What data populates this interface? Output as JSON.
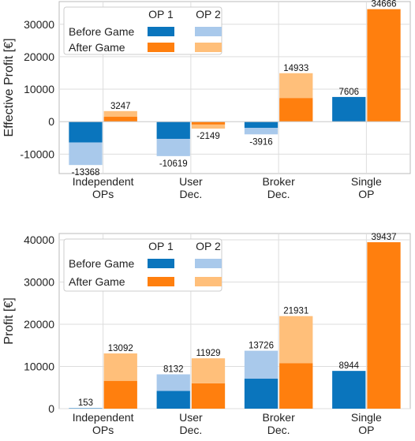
{
  "colors": {
    "before_op1": "#0a75bd",
    "before_op2": "#a9c9eb",
    "after_op1": "#ff7f0e",
    "after_op2": "#ffbf7a",
    "grid": "#dddddd",
    "axis": "#bbbbbb"
  },
  "chart_data": [
    {
      "type": "bar",
      "stacked": true,
      "grouped": true,
      "title": "",
      "xlabel": "",
      "ylabel": "Effective Profit [€]",
      "ylim": [
        -16000,
        37000
      ],
      "yticks": [
        -10000,
        0,
        10000,
        20000,
        30000
      ],
      "ytick_labels": [
        "-10000",
        "0",
        "10000",
        "20000",
        "30000"
      ],
      "grid": true,
      "categories": [
        [
          "Independent",
          "OPs"
        ],
        [
          "User",
          "Dec."
        ],
        [
          "Broker",
          "Dec."
        ],
        [
          "Single",
          "OP"
        ]
      ],
      "legend": {
        "placement": "top-left",
        "columns": [
          "OP 1",
          "OP 2"
        ],
        "rows": [
          "Before Game",
          "After Game"
        ]
      },
      "groups": [
        {
          "name": "Before Game",
          "op1": [
            -6400,
            -5300,
            -1900,
            7606
          ],
          "op2": [
            -6968,
            -5319,
            -2016,
            0
          ],
          "totals": [
            -13368,
            -10619,
            -3916,
            7606
          ]
        },
        {
          "name": "After Game",
          "op1": [
            1500,
            -900,
            7300,
            34666
          ],
          "op2": [
            1747,
            -1249,
            7633,
            0
          ],
          "totals": [
            3247,
            -2149,
            14933,
            34666
          ]
        }
      ],
      "total_labels": {
        "before": [
          "-13368",
          "-10619",
          "-3916",
          "7606"
        ],
        "after": [
          "3247",
          "-2149",
          "14933",
          "34666"
        ]
      }
    },
    {
      "type": "bar",
      "stacked": true,
      "grouped": true,
      "title": "",
      "xlabel": "",
      "ylabel": "Profit [€]",
      "ylim": [
        0,
        41500
      ],
      "yticks": [
        0,
        10000,
        20000,
        30000,
        40000
      ],
      "ytick_labels": [
        "0",
        "10000",
        "20000",
        "30000",
        "40000"
      ],
      "grid": true,
      "categories": [
        [
          "Independent",
          "OPs"
        ],
        [
          "User",
          "Dec."
        ],
        [
          "Broker",
          "Dec."
        ],
        [
          "Single",
          "OP"
        ]
      ],
      "legend": {
        "placement": "top-left",
        "columns": [
          "OP 1",
          "OP 2"
        ],
        "rows": [
          "Before Game",
          "After Game"
        ]
      },
      "groups": [
        {
          "name": "Before Game",
          "op1": [
            80,
            4200,
            7100,
            8944
          ],
          "op2": [
            73,
            3932,
            6626,
            0
          ],
          "totals": [
            153,
            8132,
            13726,
            8944
          ]
        },
        {
          "name": "After Game",
          "op1": [
            6600,
            6000,
            10800,
            39437
          ],
          "op2": [
            6492,
            5929,
            11131,
            0
          ],
          "totals": [
            13092,
            11929,
            21931,
            39437
          ]
        }
      ],
      "total_labels": {
        "before": [
          "153",
          "8132",
          "13726",
          "8944"
        ],
        "after": [
          "13092",
          "11929",
          "21931",
          "39437"
        ]
      }
    }
  ]
}
